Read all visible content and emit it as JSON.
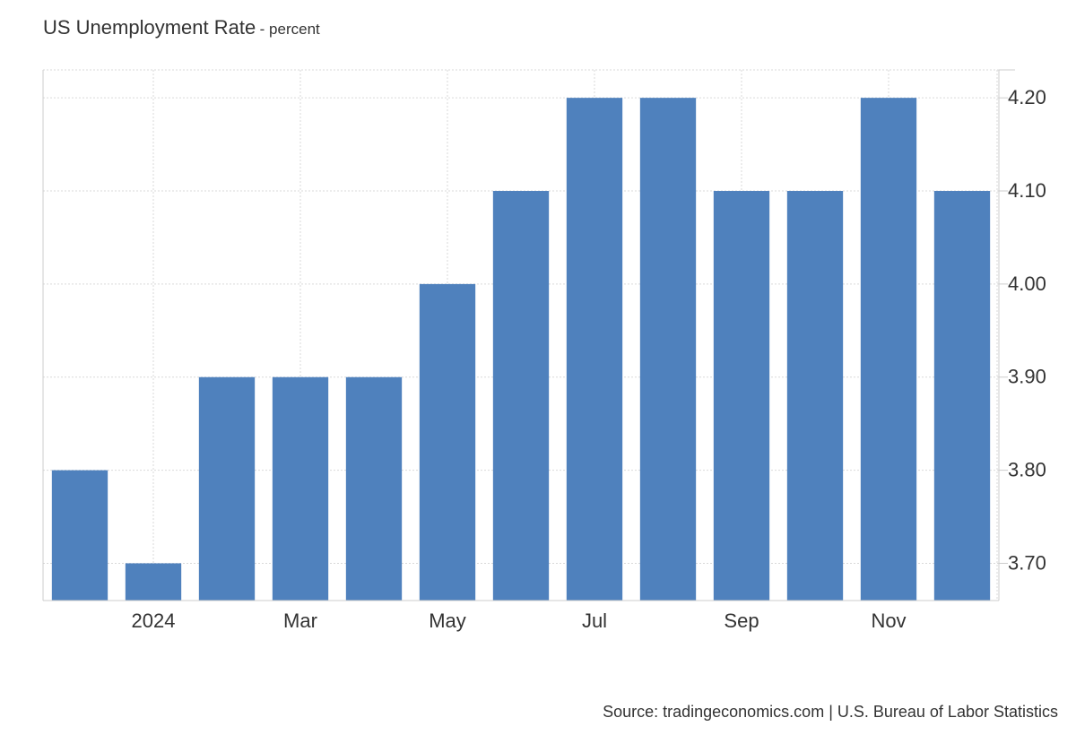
{
  "chart_data": {
    "type": "bar",
    "title": "US Unemployment Rate",
    "subtitle": "- percent",
    "categories": [
      "2023-12",
      "2024-01",
      "2024-02",
      "2024-03",
      "2024-04",
      "2024-05",
      "2024-06",
      "2024-07",
      "2024-08",
      "2024-09",
      "2024-10",
      "2024-11",
      "2024-12"
    ],
    "series": [
      {
        "values": [
          3.8,
          3.7,
          3.9,
          3.9,
          3.9,
          4.0,
          4.1,
          4.2,
          4.2,
          4.1,
          4.1,
          4.2,
          4.1
        ]
      }
    ],
    "x_tick_labels": [
      {
        "category": "2024-01",
        "label": "2024"
      },
      {
        "category": "2024-03",
        "label": "Mar"
      },
      {
        "category": "2024-05",
        "label": "May"
      },
      {
        "category": "2024-07",
        "label": "Jul"
      },
      {
        "category": "2024-09",
        "label": "Sep"
      },
      {
        "category": "2024-11",
        "label": "Nov"
      }
    ],
    "y_ticks": [
      "3.70",
      "3.80",
      "3.90",
      "4.00",
      "4.10",
      "4.20"
    ],
    "ylim": [
      3.66,
      4.23
    ],
    "y_axis_position": "right",
    "grid": true,
    "legend": "none",
    "bar_color": "#4f81bd"
  },
  "source": "Source: tradingeconomics.com | U.S. Bureau of Labor Statistics"
}
